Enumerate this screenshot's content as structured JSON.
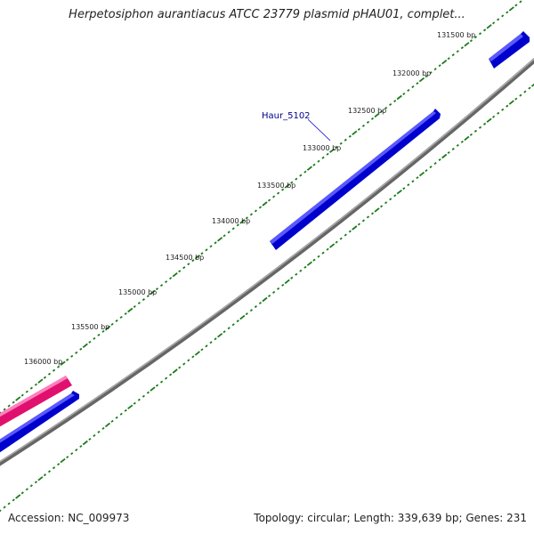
{
  "title": "Herpetosiphon aurantiacus ATCC 23779 plasmid pHAU01, complet...",
  "footer": {
    "accession": "Accession: NC_009973",
    "summary": "Topology: circular; Length: 339,639 bp; Genes: 231"
  },
  "colors": {
    "backbone": "#888888",
    "gene_forward": "#0000ff",
    "gene_other": "#ff1493",
    "ticks": "#1a7a1a",
    "gene_label": "#00008b"
  },
  "tick_labels": [
    "131500 bp",
    "132000 bp",
    "132500 bp",
    "133000 bp",
    "133500 bp",
    "134000 bp",
    "134500 bp",
    "135000 bp",
    "135500 bp",
    "136000 bp"
  ],
  "genes": [
    {
      "label": "",
      "strand": "forward"
    },
    {
      "label": "Haur_5102",
      "strand": "forward"
    },
    {
      "label": "",
      "strand": "forward"
    },
    {
      "label": "",
      "strand": "other"
    }
  ]
}
